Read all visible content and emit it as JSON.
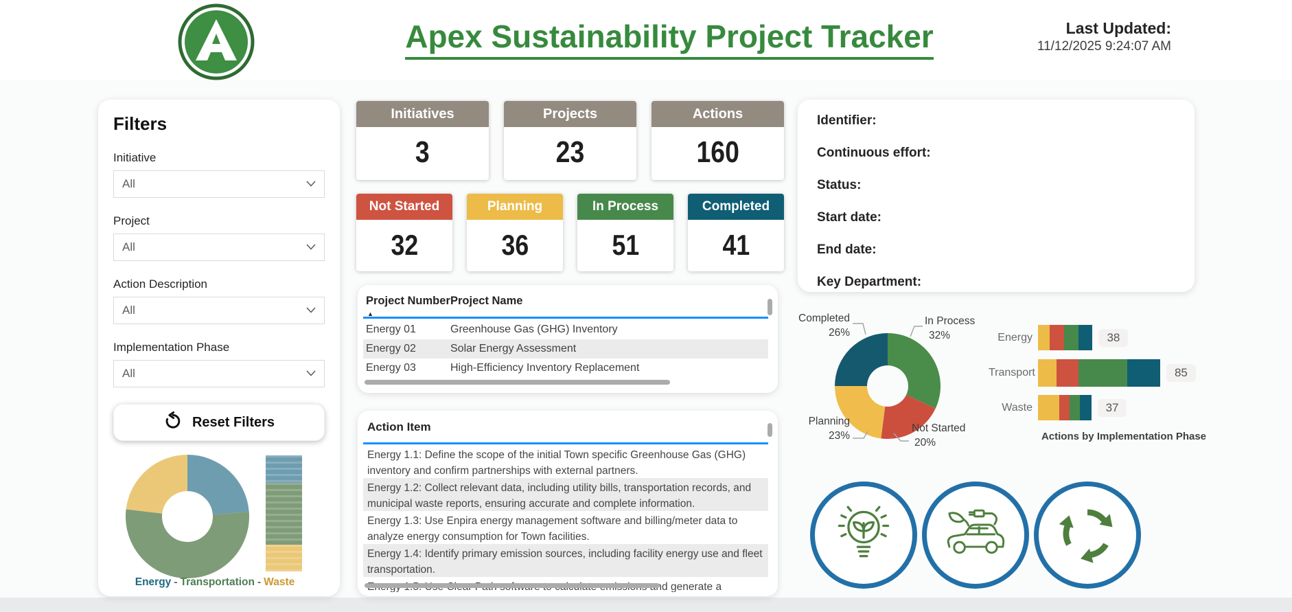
{
  "header": {
    "title": "Apex Sustainability Project Tracker",
    "last_updated_label": "Last Updated:",
    "last_updated_value": "11/12/2025 9:24:07 AM",
    "logo_letter": "A"
  },
  "filters": {
    "title": "Filters",
    "reset_label": "Reset Filters",
    "fields": [
      {
        "label": "Initiative",
        "value": "All"
      },
      {
        "label": "Project",
        "value": "All"
      },
      {
        "label": "Action Description",
        "value": "All"
      },
      {
        "label": "Implementation Phase",
        "value": "All"
      }
    ],
    "legend": {
      "separator": "-",
      "items": [
        {
          "label": "Energy",
          "color": "#1d6a80"
        },
        {
          "label": "Transportation",
          "color": "#4e7d54"
        },
        {
          "label": "Waste",
          "color": "#c99a33"
        }
      ]
    }
  },
  "kpis": [
    {
      "label": "Initiatives",
      "value": "3"
    },
    {
      "label": "Projects",
      "value": "23"
    },
    {
      "label": "Actions",
      "value": "160"
    }
  ],
  "statuses": [
    {
      "label": "Not Started",
      "value": "32",
      "color": "#ce5340"
    },
    {
      "label": "Planning",
      "value": "36",
      "color": "#edbb48"
    },
    {
      "label": "In Process",
      "value": "51",
      "color": "#47894b"
    },
    {
      "label": "Completed",
      "value": "41",
      "color": "#0f5e74"
    }
  ],
  "project_table": {
    "columns": [
      "Project Number",
      "Project Name"
    ],
    "rows": [
      [
        "Energy 01",
        "Greenhouse Gas (GHG) Inventory"
      ],
      [
        "Energy 02",
        "Solar Energy Assessment"
      ],
      [
        "Energy 03",
        "High-Efficiency Inventory Replacement"
      ]
    ]
  },
  "action_table": {
    "column": "Action Item",
    "rows": [
      "Energy 1.1: Define the scope of the initial Town specific Greenhouse Gas (GHG) inventory and confirm partnerships with external partners.",
      "Energy 1.2: Collect relevant data, including utility bills, transportation records, and municipal waste reports, ensuring accurate and complete information.",
      "Energy 1.3: Use Enpira energy management software and billing/meter data to analyze energy consumption for Town facilities.",
      "Energy 1.4: Identify primary emission sources, including facility energy use and fleet transportation.",
      "Energy 1.5: Use Clear Path software to calculate emissions and generate a"
    ]
  },
  "details": {
    "labels": [
      "Identifier:",
      "Continuous effort:",
      "Status:",
      "Start date:",
      "End date:",
      "Key Department:"
    ]
  },
  "chart_data": [
    {
      "id": "initiative-donut",
      "type": "pie",
      "categories": [
        "Energy",
        "Transportation",
        "Waste"
      ],
      "values": [
        38,
        85,
        37
      ],
      "colors": [
        "#6e9db0",
        "#7f9c78",
        "#ebc878"
      ],
      "legend_position": "bottom",
      "legend_text": "Energy - Transportation - Waste"
    },
    {
      "id": "initiative-stacked-column",
      "type": "bar",
      "orientation": "vertical-stacked",
      "categories": [
        "Energy",
        "Transportation",
        "Waste"
      ],
      "values": [
        38,
        85,
        37
      ],
      "colors": [
        "#6e9db0",
        "#7f9c78",
        "#ebc878"
      ]
    },
    {
      "id": "status-donut",
      "type": "pie",
      "categories": [
        "In Process",
        "Not Started",
        "Planning",
        "Completed"
      ],
      "values": [
        32,
        20,
        23,
        26
      ],
      "unit": "percent",
      "colors": [
        "#4a8c4a",
        "#cc4f3d",
        "#f0bd4c",
        "#15596e"
      ],
      "labels": [
        {
          "name": "Completed",
          "pct": "26%"
        },
        {
          "name": "In Process",
          "pct": "32%"
        },
        {
          "name": "Planning",
          "pct": "23%"
        },
        {
          "name": "Not Started",
          "pct": "20%"
        }
      ]
    },
    {
      "id": "actions-by-phase",
      "type": "bar",
      "orientation": "horizontal-stacked",
      "title": "Actions by Implementation Phase",
      "categories": [
        "Energy",
        "Transport",
        "Waste"
      ],
      "totals": [
        38,
        85,
        37
      ],
      "xlim": [
        0,
        85
      ],
      "series": [
        {
          "name": "Planning",
          "color": "#edbb48",
          "values": [
            8,
            13,
            15
          ]
        },
        {
          "name": "Not Started",
          "color": "#cd5240",
          "values": [
            10,
            15,
            7
          ]
        },
        {
          "name": "In Process",
          "color": "#47894b",
          "values": [
            10,
            34,
            7
          ]
        },
        {
          "name": "Completed",
          "color": "#0f5e74",
          "values": [
            10,
            23,
            8
          ]
        }
      ]
    }
  ],
  "theme": {
    "title_green": "#378a3d",
    "kpi_header": "#938b80",
    "table_accent": "#188fff",
    "scrollbar": "#ababab",
    "badge_ring": "#2270a8",
    "icon_green": "#4e7f3e",
    "logo_green": "#3e8e43",
    "logo_ring": "#2e6b33"
  }
}
